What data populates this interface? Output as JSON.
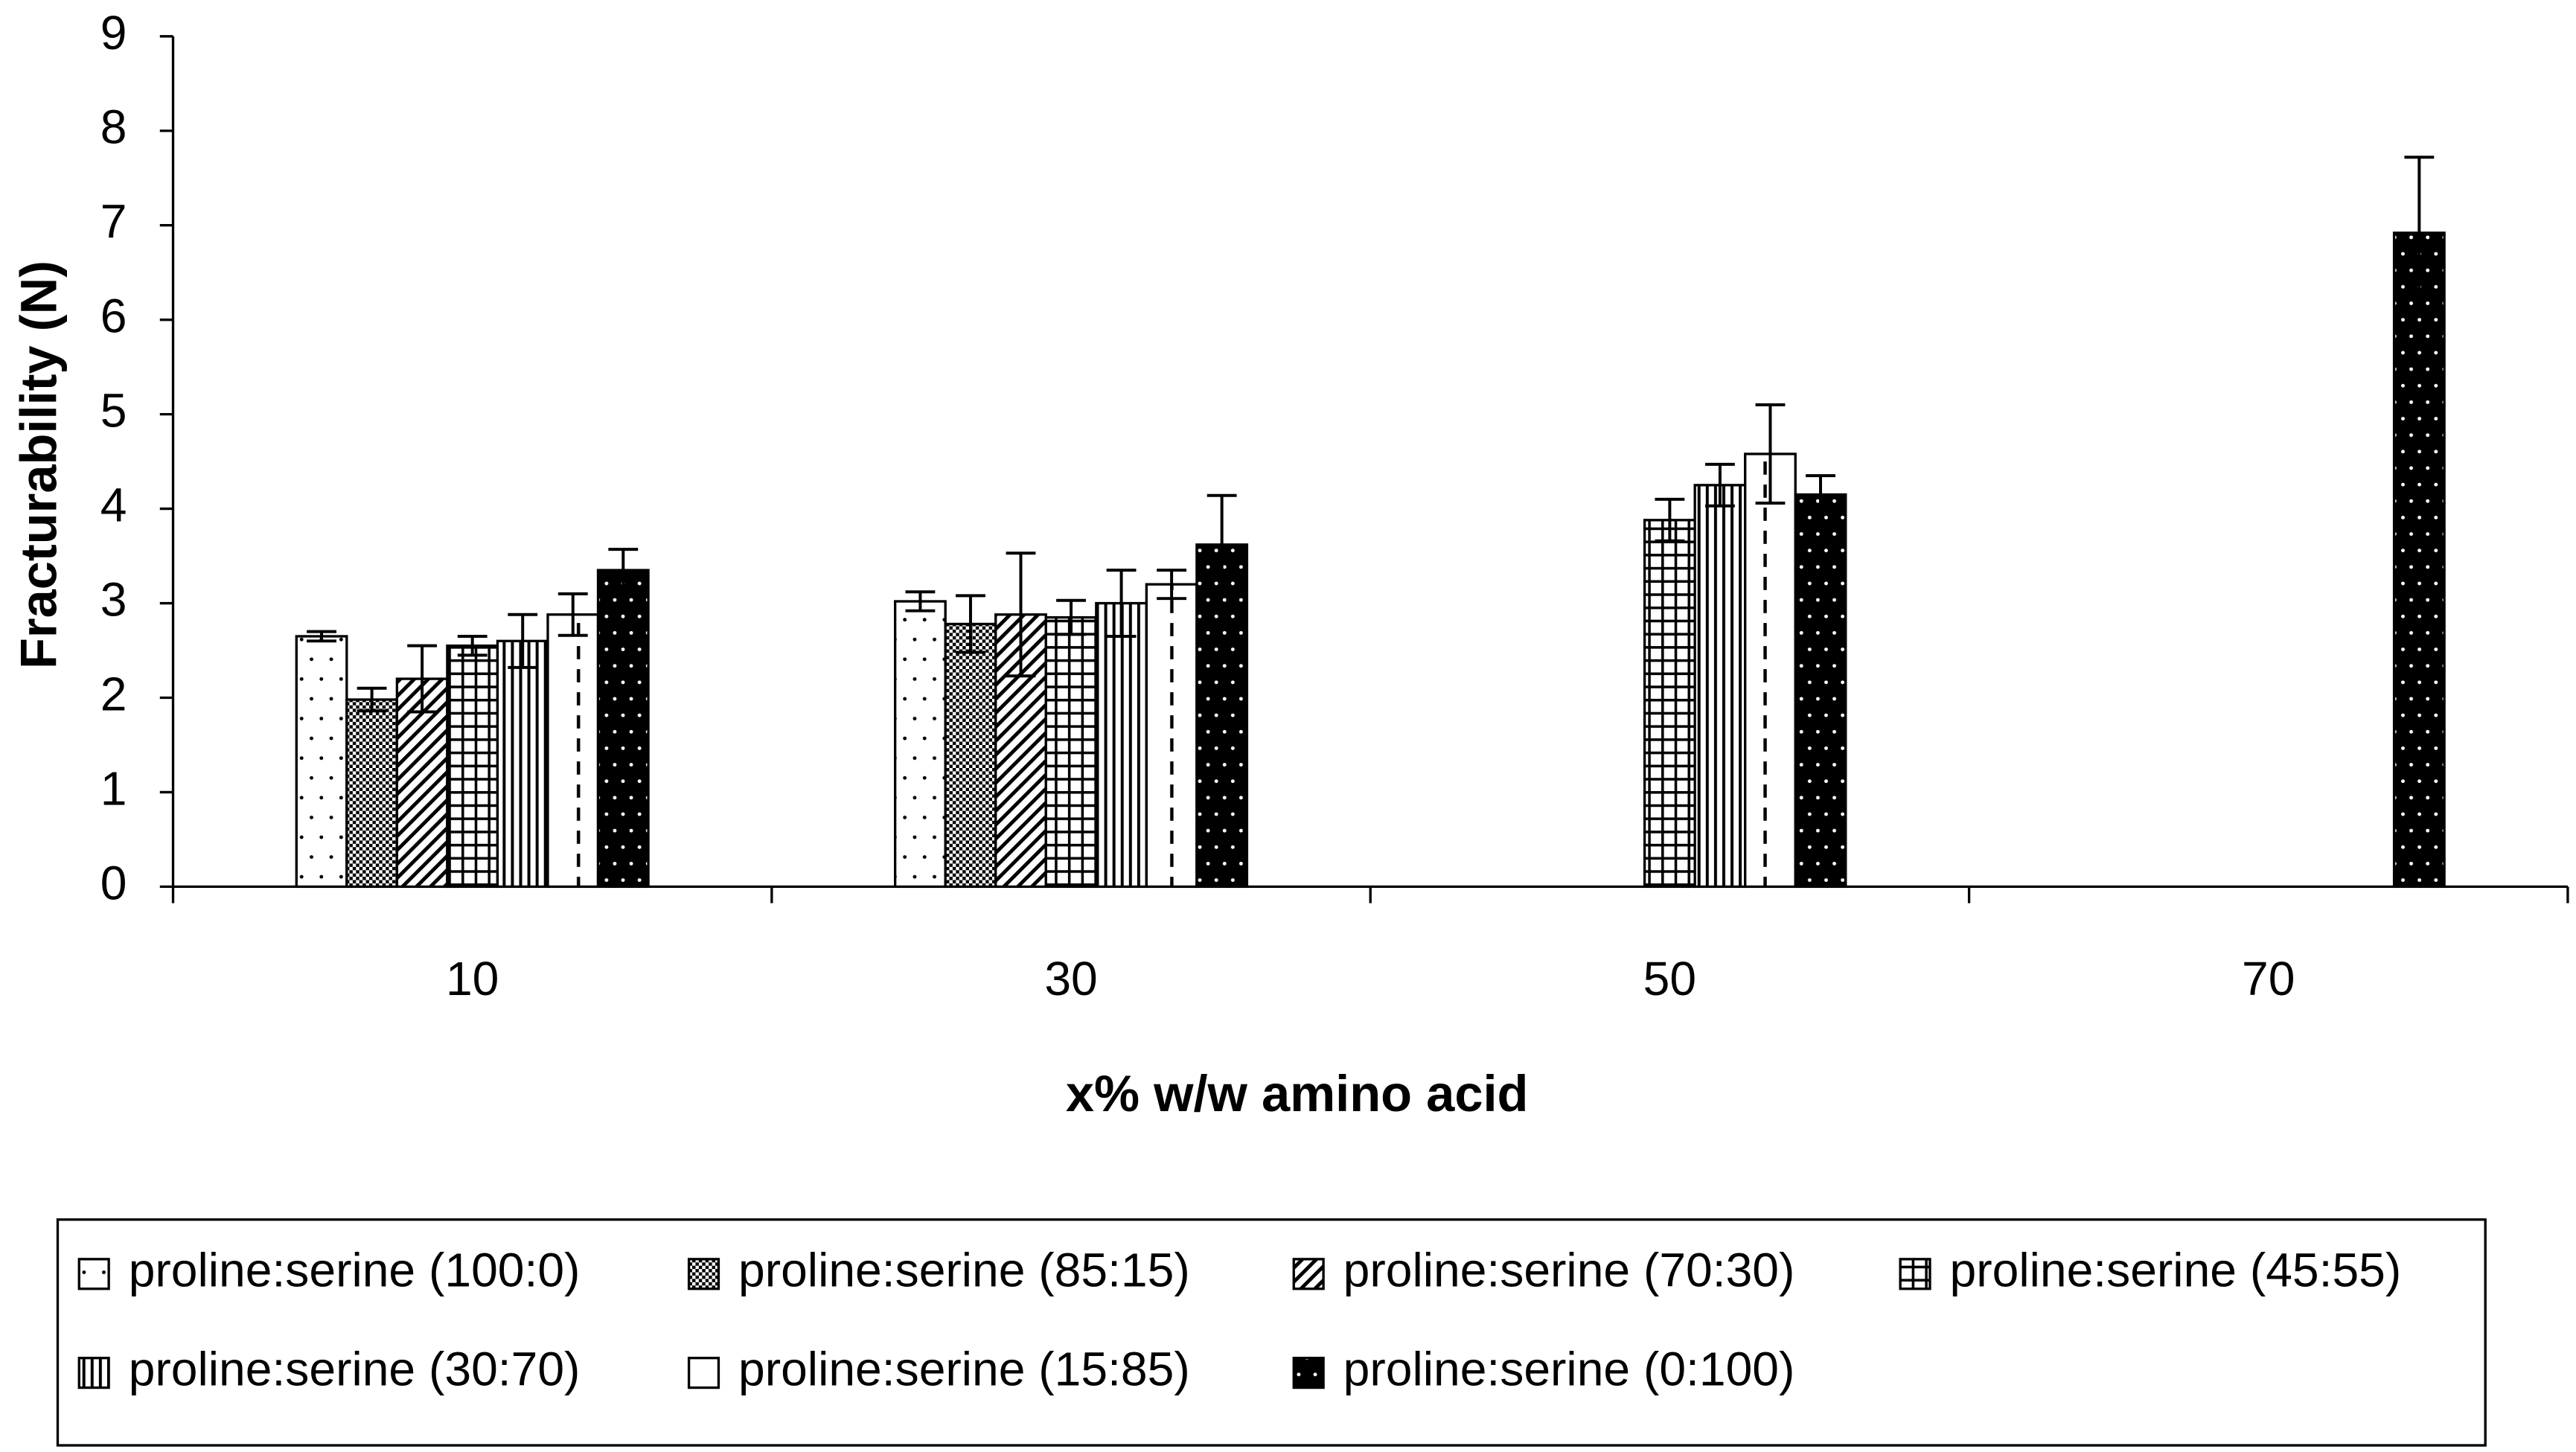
{
  "chart_data": {
    "type": "bar",
    "x_label": "x% w/w amino acid",
    "y_label": "Fracturability (N)",
    "categories": [
      "10",
      "30",
      "50",
      "70"
    ],
    "ylim": [
      0,
      9
    ],
    "yticks": [
      0,
      1,
      2,
      3,
      4,
      5,
      6,
      7,
      8,
      9
    ],
    "series": [
      {
        "name": "proline:serine (100:0)",
        "pattern": "dots",
        "values": [
          2.65,
          3.02,
          null,
          null
        ],
        "errors": [
          0.05,
          0.1,
          null,
          null
        ]
      },
      {
        "name": "proline:serine (85:15)",
        "pattern": "checker",
        "values": [
          1.98,
          2.78,
          null,
          null
        ],
        "errors": [
          0.12,
          0.3,
          null,
          null
        ]
      },
      {
        "name": "proline:serine (70:30)",
        "pattern": "diagonal",
        "values": [
          2.2,
          2.88,
          null,
          null
        ],
        "errors": [
          0.35,
          0.65,
          null,
          null
        ]
      },
      {
        "name": "proline:serine (45:55)",
        "pattern": "grid",
        "values": [
          2.55,
          2.85,
          3.88,
          null
        ],
        "errors": [
          0.1,
          0.18,
          0.22,
          null
        ]
      },
      {
        "name": "proline:serine (30:70)",
        "pattern": "vertical",
        "values": [
          2.6,
          3.0,
          4.25,
          null
        ],
        "errors": [
          0.28,
          0.35,
          0.22,
          null
        ]
      },
      {
        "name": "proline:serine (15:85)",
        "pattern": "dashed",
        "values": [
          2.88,
          3.2,
          4.58,
          null
        ],
        "errors": [
          0.22,
          0.15,
          0.52,
          null
        ]
      },
      {
        "name": "proline:serine (0:100)",
        "pattern": "dark-dots",
        "values": [
          3.35,
          3.62,
          4.15,
          6.92
        ],
        "errors": [
          0.22,
          0.52,
          0.2,
          0.8
        ]
      }
    ]
  }
}
